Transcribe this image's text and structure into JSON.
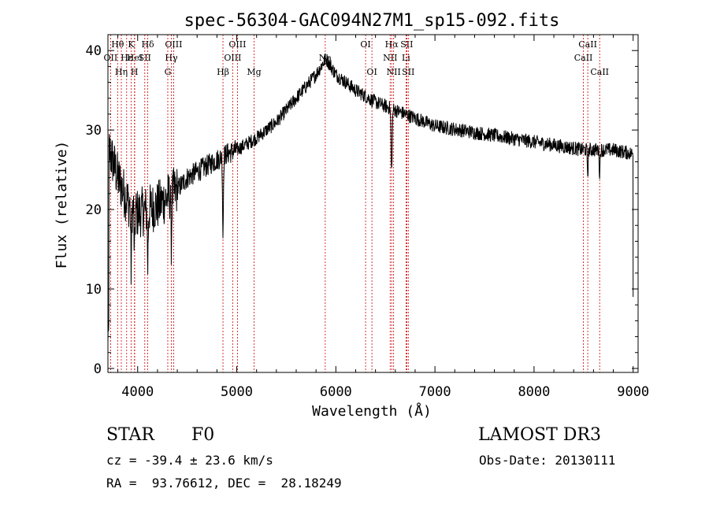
{
  "chart_data": {
    "type": "line",
    "title": "spec-56304-GAC094N27M1_sp15-092.fits",
    "xlabel": "Wavelength (Å)",
    "ylabel": "Flux (relative)",
    "xlim": [
      3700,
      9050
    ],
    "ylim": [
      -0.5,
      42
    ],
    "xticks": [
      4000,
      5000,
      6000,
      7000,
      8000,
      9000
    ],
    "yticks": [
      0,
      10,
      20,
      30,
      40
    ],
    "spectral_lines": [
      {
        "label": "Hθ",
        "wavelength": 3798,
        "row": 0
      },
      {
        "label": "K",
        "wavelength": 3934,
        "row": 0
      },
      {
        "label": "Hδ",
        "wavelength": 4102,
        "row": 0
      },
      {
        "label": "OIII",
        "wavelength": 4363,
        "row": 0
      },
      {
        "label": "OIII",
        "wavelength": 5007,
        "row": 0
      },
      {
        "label": "OI",
        "wavelength": 6300,
        "row": 0
      },
      {
        "label": "Hα",
        "wavelength": 6563,
        "row": 0
      },
      {
        "label": "SII",
        "wavelength": 6716,
        "row": 0
      },
      {
        "label": "CaII",
        "wavelength": 8542,
        "row": 0
      },
      {
        "label": "OII",
        "wavelength": 3727,
        "row": 1
      },
      {
        "label": "Hε",
        "wavelength": 3889,
        "row": 1
      },
      {
        "label": "HeI",
        "wavelength": 3970,
        "row": 1
      },
      {
        "label": "SII",
        "wavelength": 4072,
        "row": 1
      },
      {
        "label": "Hγ",
        "wavelength": 4340,
        "row": 1
      },
      {
        "label": "OIII",
        "wavelength": 4959,
        "row": 1
      },
      {
        "label": "NII",
        "wavelength": 6548,
        "row": 1
      },
      {
        "label": "Li",
        "wavelength": 6708,
        "row": 1
      },
      {
        "label": "CaII",
        "wavelength": 8498,
        "row": 1
      },
      {
        "label": "Hη",
        "wavelength": 3835,
        "row": 2
      },
      {
        "label": "H",
        "wavelength": 3968,
        "row": 2
      },
      {
        "label": "G",
        "wavelength": 4304,
        "row": 2
      },
      {
        "label": "Hβ",
        "wavelength": 4861,
        "row": 2
      },
      {
        "label": "Mg",
        "wavelength": 5175,
        "row": 2
      },
      {
        "label": "Na",
        "wavelength": 5893,
        "row": 1
      },
      {
        "label": "OI",
        "wavelength": 6364,
        "row": 2
      },
      {
        "label": "NII",
        "wavelength": 6583,
        "row": 2
      },
      {
        "label": "SII",
        "wavelength": 6731,
        "row": 2
      },
      {
        "label": "CaII",
        "wavelength": 8662,
        "row": 2
      }
    ],
    "continuum_anchors": [
      [
        3700,
        28
      ],
      [
        3800,
        24
      ],
      [
        3900,
        21
      ],
      [
        4000,
        19.5
      ],
      [
        4100,
        20
      ],
      [
        4200,
        20.5
      ],
      [
        4300,
        21.5
      ],
      [
        4400,
        22.5
      ],
      [
        4500,
        24
      ],
      [
        4700,
        25.5
      ],
      [
        4900,
        27
      ],
      [
        5000,
        27.5
      ],
      [
        5200,
        29
      ],
      [
        5400,
        31
      ],
      [
        5600,
        34
      ],
      [
        5800,
        37
      ],
      [
        5900,
        39
      ],
      [
        6000,
        37
      ],
      [
        6200,
        35
      ],
      [
        6400,
        33.5
      ],
      [
        6600,
        32.5
      ],
      [
        6800,
        31.5
      ],
      [
        7000,
        30.5
      ],
      [
        7500,
        29.5
      ],
      [
        8000,
        28.5
      ],
      [
        8500,
        27.5
      ],
      [
        8800,
        27.5
      ],
      [
        9000,
        27
      ]
    ],
    "absorption_features": [
      {
        "wavelength": 4861,
        "depth": 10,
        "width": 6
      },
      {
        "wavelength": 6563,
        "depth": 8,
        "width": 8
      },
      {
        "wavelength": 3934,
        "depth": 8,
        "width": 6
      },
      {
        "wavelength": 3968,
        "depth": 6,
        "width": 6
      },
      {
        "wavelength": 4102,
        "depth": 7,
        "width": 6
      },
      {
        "wavelength": 4340,
        "depth": 6,
        "width": 6
      },
      {
        "wavelength": 8542,
        "depth": 3,
        "width": 6
      },
      {
        "wavelength": 8662,
        "depth": 3,
        "width": 6
      }
    ]
  },
  "info": {
    "object_class": "STAR",
    "subclass": "F0",
    "survey": "LAMOST DR3",
    "velocity": "cz = -39.4 ± 23.6 km/s",
    "obs_date": "Obs-Date: 20130111",
    "coordinates": "RA =  93.76612, DEC =  28.18249"
  }
}
